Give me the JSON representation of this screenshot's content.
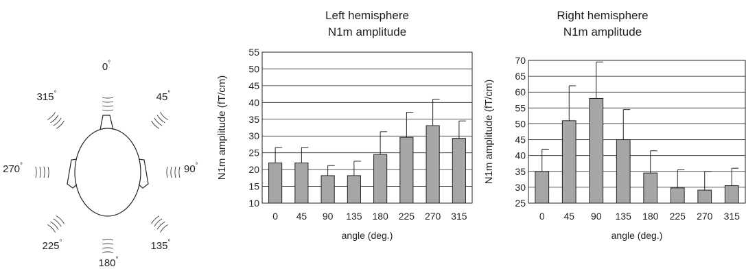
{
  "diagram": {
    "angle_labels": [
      {
        "label": "0",
        "deg": 0
      },
      {
        "label": "45",
        "deg": 45
      },
      {
        "label": "90",
        "deg": 90
      },
      {
        "label": "135",
        "deg": 135
      },
      {
        "label": "180",
        "deg": 180
      },
      {
        "label": "225",
        "deg": 225
      },
      {
        "label": "270",
        "deg": 270
      },
      {
        "label": "315",
        "deg": 315
      }
    ],
    "degree_symbol": "°"
  },
  "chart_data": [
    {
      "type": "bar",
      "title_lines": [
        "Left hemisphere",
        "N1m amplitude"
      ],
      "xlabel": "angle (deg.)",
      "ylabel": "N1m amplitude (fT/cm)",
      "categories": [
        "0",
        "45",
        "90",
        "135",
        "180",
        "225",
        "270",
        "315"
      ],
      "values": [
        22,
        22,
        18.2,
        18.2,
        24.5,
        29.6,
        33.1,
        29.3
      ],
      "error_upper": [
        26.6,
        26.6,
        21.2,
        22.5,
        31.3,
        37.1,
        41,
        34.5
      ],
      "ylim": [
        10,
        55
      ],
      "yticks": [
        10,
        15,
        20,
        25,
        30,
        35,
        40,
        45,
        50,
        55
      ],
      "grid": true,
      "bar_color": "#a6a6a6"
    },
    {
      "type": "bar",
      "title_lines": [
        "Right hemisphere",
        "N1m amplitude"
      ],
      "xlabel": "angle (deg.)",
      "ylabel": "N1m amplitude (fT/cm)",
      "categories": [
        "0",
        "45",
        "90",
        "135",
        "180",
        "225",
        "270",
        "315"
      ],
      "values": [
        35,
        51,
        58,
        45,
        34.5,
        29.8,
        29.1,
        30.5
      ],
      "error_upper": [
        42,
        62,
        69.5,
        54.5,
        41.5,
        35.5,
        35,
        36
      ],
      "ylim": [
        25,
        70
      ],
      "yticks": [
        25,
        30,
        35,
        40,
        45,
        50,
        55,
        60,
        65,
        70
      ],
      "grid": true,
      "bar_color": "#a6a6a6"
    }
  ]
}
